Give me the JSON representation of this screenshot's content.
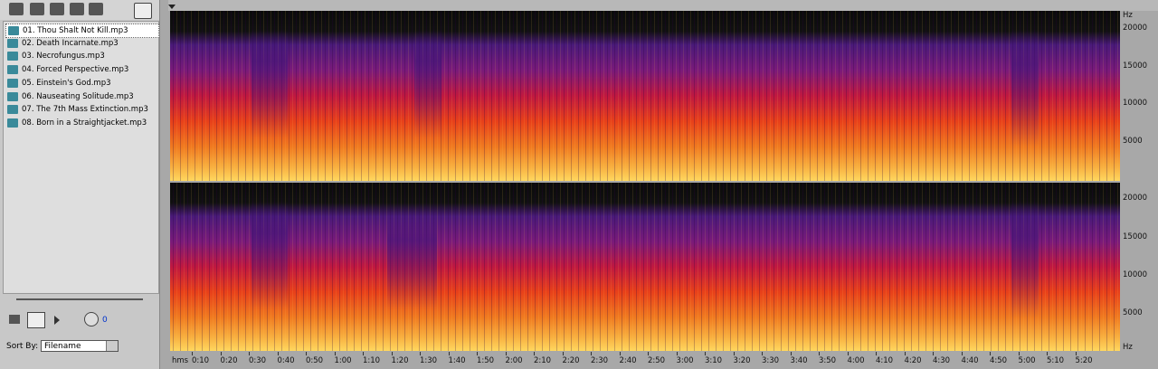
{
  "file_list": {
    "items": [
      "01. Thou Shalt Not Kill.mp3",
      "02. Death Incarnate.mp3",
      "03. Necrofungus.mp3",
      "04. Forced Perspective.mp3",
      "05. Einstein's God.mp3",
      "06. Nauseating Solitude.mp3",
      "07. The 7th Mass Extinction.mp3",
      "08. Born in a Straightjacket.mp3"
    ],
    "selected": 0
  },
  "transport": {
    "volume": "0"
  },
  "sort": {
    "label": "Sort By:",
    "value": "Filename"
  },
  "spectrogram": {
    "channels": [
      {
        "unit": "Hz",
        "labels": [
          "20000",
          "15000",
          "10000",
          "5000"
        ]
      },
      {
        "unit": "Hz",
        "labels": [
          "20000",
          "15000",
          "10000",
          "5000"
        ]
      }
    ],
    "time_unit": "hms",
    "time_labels": [
      "0:10",
      "0:20",
      "0:30",
      "0:40",
      "0:50",
      "1:00",
      "1:10",
      "1:20",
      "1:30",
      "1:40",
      "1:50",
      "2:00",
      "2:10",
      "2:20",
      "2:30",
      "2:40",
      "2:50",
      "3:00",
      "3:10",
      "3:20",
      "3:30",
      "3:40",
      "3:50",
      "4:00",
      "4:10",
      "4:20",
      "4:30",
      "4:40",
      "4:50",
      "5:00",
      "5:10",
      "5:20"
    ]
  }
}
